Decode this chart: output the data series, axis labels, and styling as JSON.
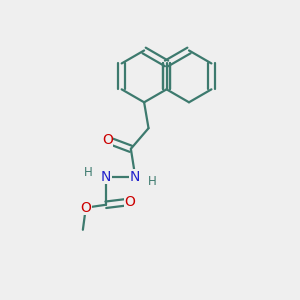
{
  "bg_color": "#efefef",
  "bond_color": "#3d7a6e",
  "bond_width": 1.6,
  "atom_N_color": "#2222cc",
  "atom_O_color": "#cc0000",
  "atom_C_color": "#3d7a6e",
  "font_size_atom": 10,
  "font_size_H": 8.5,
  "figsize": [
    3.0,
    3.0
  ],
  "dpi": 100,
  "xlim": [
    0,
    10
  ],
  "ylim": [
    0,
    10
  ]
}
